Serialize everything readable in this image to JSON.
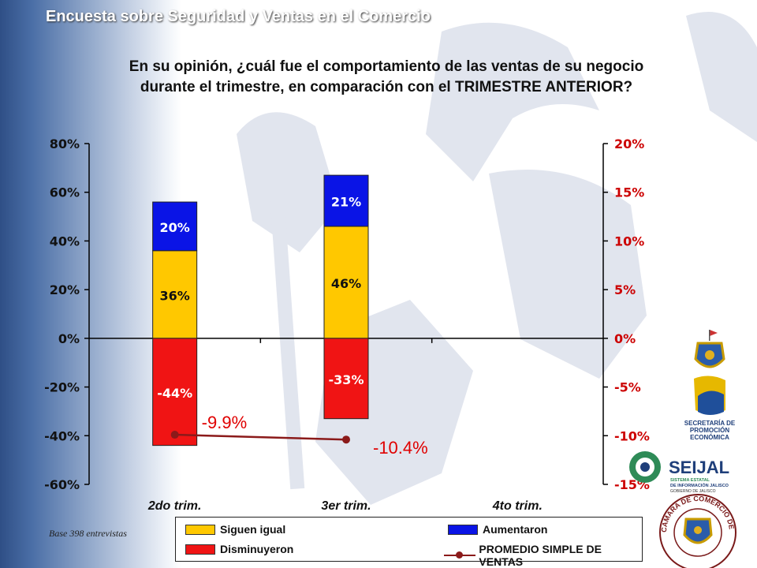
{
  "header": {
    "title": "Encuesta sobre Seguridad y Ventas en el Comercio"
  },
  "question": {
    "line1": "En su opinión, ¿cuál fue el comportamiento de las ventas de su negocio",
    "line2": "durante el trimestre, en comparación con el TRIMESTRE ANTERIOR?"
  },
  "base_note": "Base 398 entrevistas",
  "colors": {
    "siguen": "#FFC800",
    "aumentaron": "#0A14E6",
    "disminuyeron": "#F01414",
    "promedio": "#8B1A1A",
    "right_axis": "#CC0000"
  },
  "chart_data": {
    "type": "bar",
    "stacked": true,
    "categories": [
      "2do trim.",
      "3er trim.",
      "4to trim."
    ],
    "series": [
      {
        "name": "Siguen igual",
        "values": [
          36,
          46,
          null
        ],
        "labels": [
          "36%",
          "46%",
          ""
        ]
      },
      {
        "name": "Aumentaron",
        "values": [
          20,
          21,
          null
        ],
        "labels": [
          "20%",
          "21%",
          ""
        ]
      },
      {
        "name": "Disminuyeron",
        "values": [
          -44,
          -33,
          null
        ],
        "labels": [
          "-44%",
          "-33%",
          ""
        ]
      }
    ],
    "line_series": {
      "name": "PROMEDIO SIMPLE DE VENTAS",
      "values": [
        -9.9,
        -10.4,
        null
      ],
      "labels": [
        "-9.9%",
        "-10.4%",
        ""
      ],
      "axis": "right"
    },
    "y_left": {
      "min": -60,
      "max": 80,
      "ticks": [
        "80%",
        "60%",
        "40%",
        "20%",
        "0%",
        "-20%",
        "-40%",
        "-60%"
      ]
    },
    "y_right": {
      "min": -15,
      "max": 20,
      "ticks": [
        "20%",
        "15%",
        "10%",
        "5%",
        "0%",
        "-5%",
        "-10%",
        "-15%"
      ]
    },
    "legend": [
      "Siguen igual",
      "Aumentaron",
      "Disminuyeron",
      "PROMEDIO SIMPLE DE VENTAS"
    ]
  },
  "logos": {
    "seijal_name": "SEIJAL",
    "seijal_sub1": "SISTEMA ESTATAL",
    "seijal_sub2": "DE INFORMACIÓN JALISCO",
    "seijal_sub3": "GOBIERNO DE JALISCO",
    "secretaria1": "SECRETARÍA DE",
    "secretaria2": "PROMOCIÓN",
    "secretaria3": "ECONÓMICA",
    "camara_text": "CAMARA DE COMERCIO DE GUADALAJARA"
  }
}
